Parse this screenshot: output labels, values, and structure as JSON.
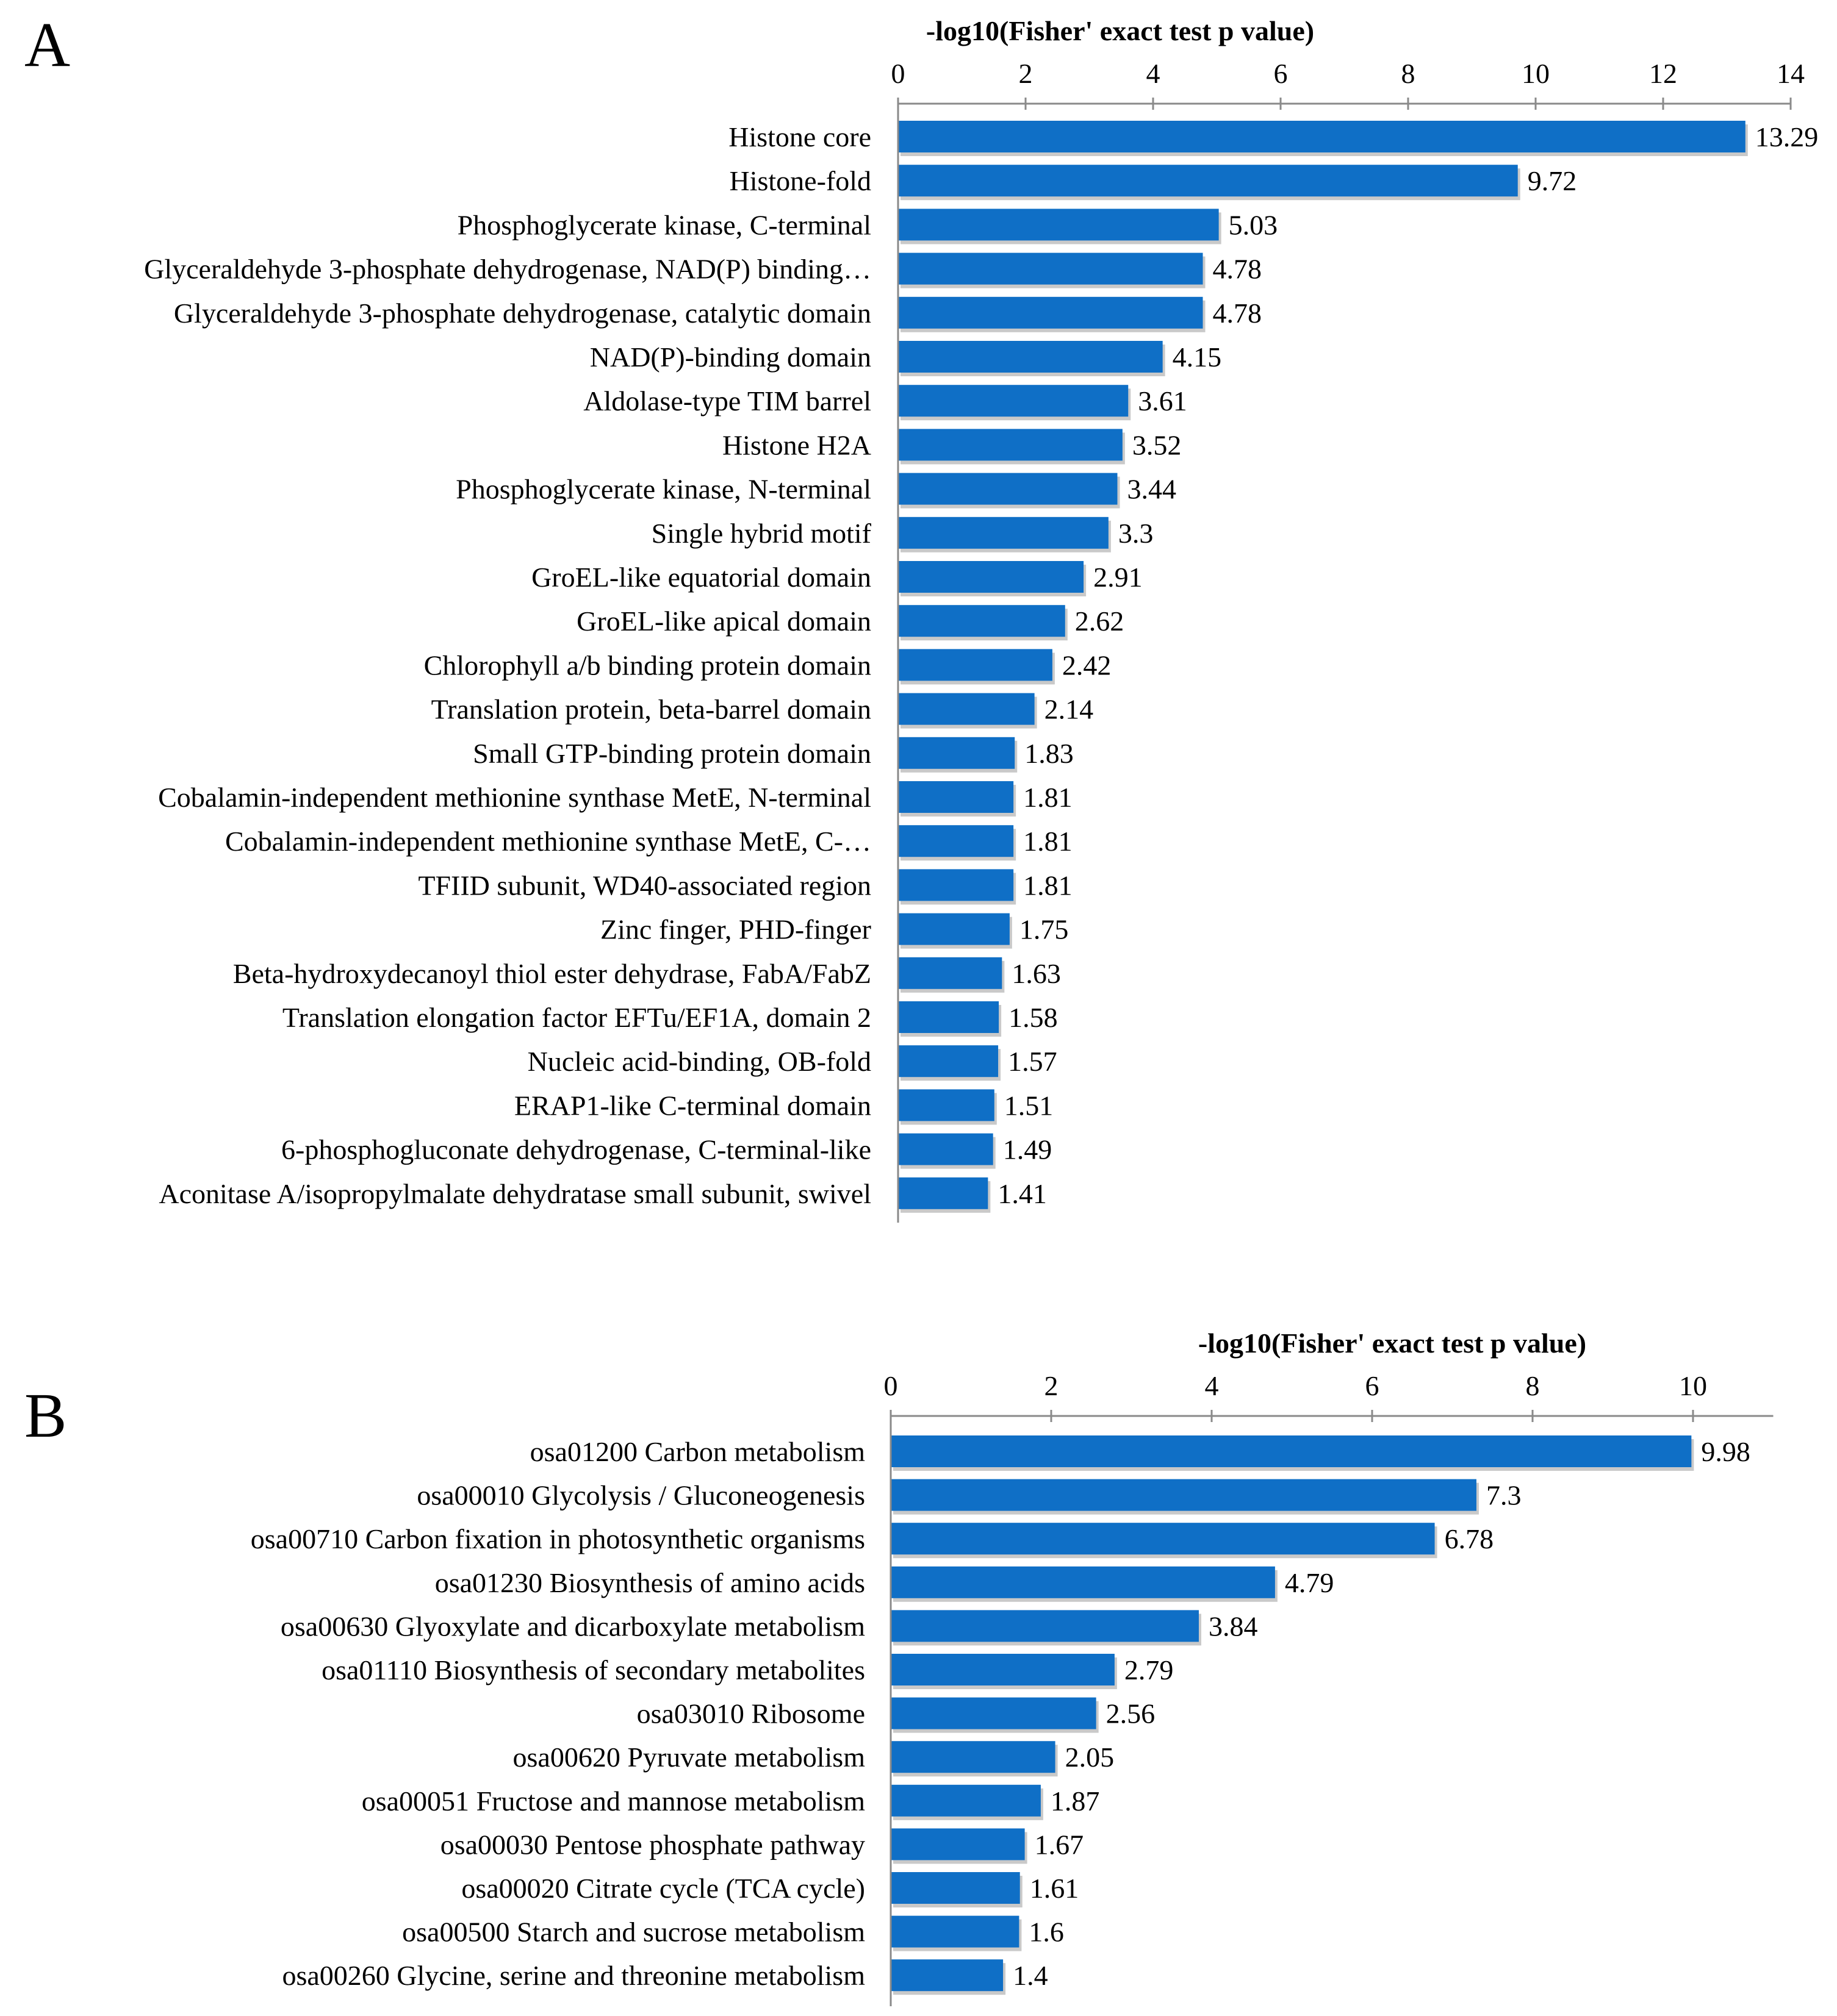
{
  "colors": {
    "bar": "#0f6fc6",
    "axis": "#8a8a8a"
  },
  "chart_data": [
    {
      "panel": "A",
      "type": "bar",
      "orientation": "horizontal",
      "title": "",
      "xlabel": "-log10(Fisher' exact test p value)",
      "ylabel": "",
      "xlim": [
        0,
        14
      ],
      "xticks": [
        0,
        2,
        4,
        6,
        8,
        10,
        12,
        14
      ],
      "categories": [
        "Histone core",
        "Histone-fold",
        "Phosphoglycerate kinase, C-terminal",
        "Glyceraldehyde 3-phosphate dehydrogenase, NAD(P) binding…",
        "Glyceraldehyde 3-phosphate dehydrogenase, catalytic domain",
        "NAD(P)-binding domain",
        "Aldolase-type TIM barrel",
        "Histone H2A",
        "Phosphoglycerate kinase, N-terminal",
        "Single hybrid motif",
        "GroEL-like equatorial domain",
        "GroEL-like apical domain",
        "Chlorophyll a/b binding protein domain",
        "Translation protein, beta-barrel domain",
        "Small GTP-binding protein domain",
        "Cobalamin-independent methionine synthase MetE, N-terminal",
        "Cobalamin-independent methionine synthase MetE, C-…",
        "TFIID subunit, WD40-associated region",
        "Zinc finger, PHD-finger",
        "Beta-hydroxydecanoyl thiol ester dehydrase, FabA/FabZ",
        "Translation elongation factor EFTu/EF1A, domain 2",
        "Nucleic acid-binding, OB-fold",
        "ERAP1-like C-terminal domain",
        "6-phosphogluconate dehydrogenase, C-terminal-like",
        "Aconitase A/isopropylmalate dehydratase small subunit, swivel"
      ],
      "values": [
        13.29,
        9.72,
        5.03,
        4.78,
        4.78,
        4.15,
        3.61,
        3.52,
        3.44,
        3.3,
        2.91,
        2.62,
        2.42,
        2.14,
        1.83,
        1.81,
        1.81,
        1.81,
        1.75,
        1.63,
        1.58,
        1.57,
        1.51,
        1.49,
        1.41
      ],
      "value_labels": [
        "13.29",
        "9.72",
        "5.03",
        "4.78",
        "4.78",
        "4.15",
        "3.61",
        "3.52",
        "3.44",
        "3.3",
        "2.91",
        "2.62",
        "2.42",
        "2.14",
        "1.83",
        "1.81",
        "1.81",
        "1.81",
        "1.75",
        "1.63",
        "1.58",
        "1.57",
        "1.51",
        "1.49",
        "1.41"
      ],
      "legend": "none",
      "grid": false
    },
    {
      "panel": "B",
      "type": "bar",
      "orientation": "horizontal",
      "title": "",
      "xlabel": "-log10(Fisher' exact test p value)",
      "ylabel": "",
      "xlim": [
        0,
        11
      ],
      "xticks": [
        0,
        2,
        4,
        6,
        8,
        10
      ],
      "categories": [
        "osa01200 Carbon metabolism",
        "osa00010 Glycolysis / Gluconeogenesis",
        "osa00710 Carbon fixation in photosynthetic organisms",
        "osa01230 Biosynthesis of amino acids",
        "osa00630 Glyoxylate and dicarboxylate metabolism",
        "osa01110 Biosynthesis of secondary metabolites",
        "osa03010 Ribosome",
        "osa00620 Pyruvate metabolism",
        "osa00051 Fructose and mannose metabolism",
        "osa00030 Pentose phosphate pathway",
        "osa00020 Citrate cycle (TCA cycle)",
        "osa00500 Starch and sucrose metabolism",
        "osa00260 Glycine, serine and threonine metabolism"
      ],
      "values": [
        9.98,
        7.3,
        6.78,
        4.79,
        3.84,
        2.79,
        2.56,
        2.05,
        1.87,
        1.67,
        1.61,
        1.6,
        1.4
      ],
      "value_labels": [
        "9.98",
        "7.3",
        "6.78",
        "4.79",
        "3.84",
        "2.79",
        "2.56",
        "2.05",
        "1.87",
        "1.67",
        "1.61",
        "1.6",
        "1.4"
      ],
      "legend": "none",
      "grid": false
    }
  ]
}
